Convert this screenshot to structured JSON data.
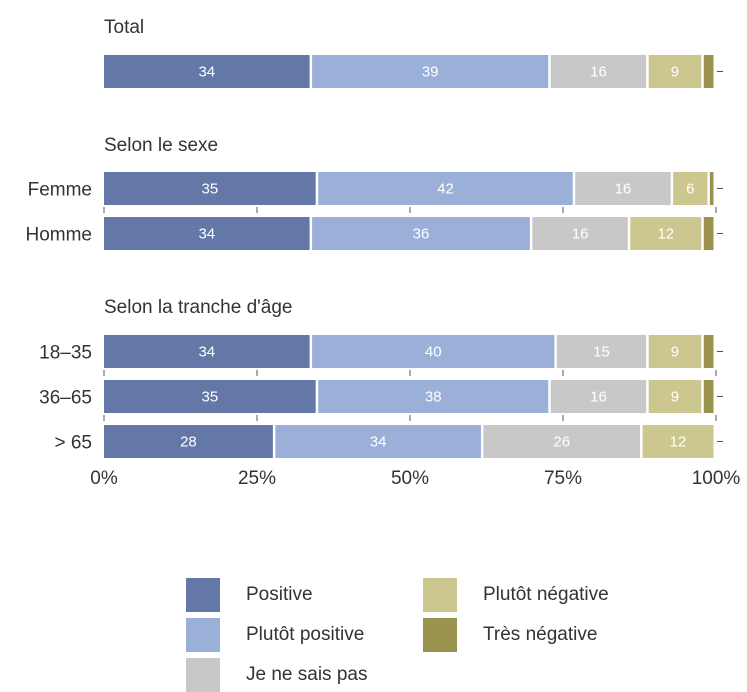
{
  "chart_data": {
    "type": "bar",
    "orientation": "horizontal",
    "stacked": true,
    "xlim": [
      0,
      100
    ],
    "x_ticks": [
      "0%",
      "25%",
      "50%",
      "75%",
      "100%"
    ],
    "legend_position": "bottom",
    "series": [
      {
        "name": "Positive",
        "color": "#6478a8"
      },
      {
        "name": "Plutôt positive",
        "color": "#9bb0d9"
      },
      {
        "name": "Je ne sais pas",
        "color": "#c8c8c8"
      },
      {
        "name": "Plutôt négative",
        "color": "#cbc78e"
      },
      {
        "name": "Très négative",
        "color": "#9a9350"
      }
    ],
    "groups": [
      {
        "title": "Total",
        "rows": [
          {
            "label": "",
            "values": [
              34,
              39,
              16,
              9,
              2
            ]
          }
        ]
      },
      {
        "title": "Selon le sexe",
        "rows": [
          {
            "label": "Femme",
            "values": [
              35,
              42,
              16,
              6,
              1
            ]
          },
          {
            "label": "Homme",
            "values": [
              34,
              36,
              16,
              12,
              2
            ]
          }
        ]
      },
      {
        "title": "Selon la tranche d'âge",
        "rows": [
          {
            "label": "18–35",
            "values": [
              34,
              40,
              15,
              9,
              2
            ]
          },
          {
            "label": "36–65",
            "values": [
              35,
              38,
              16,
              9,
              2
            ]
          },
          {
            "label": "> 65",
            "values": [
              28,
              34,
              26,
              12,
              0
            ]
          }
        ]
      }
    ],
    "label_threshold": 3
  }
}
